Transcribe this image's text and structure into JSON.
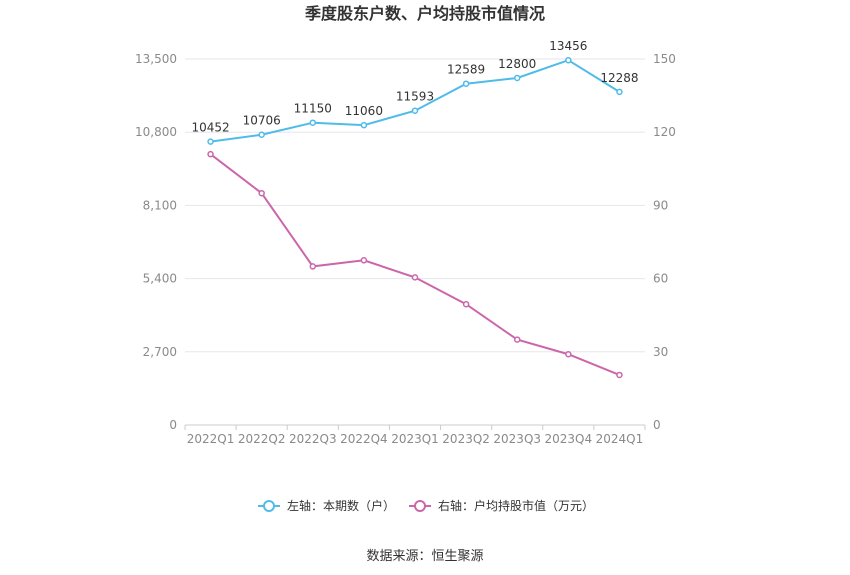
{
  "chart_data": {
    "type": "line",
    "title": "季度股东户数、户均持股市值情况",
    "categories": [
      "2022Q1",
      "2022Q2",
      "2022Q3",
      "2022Q4",
      "2023Q1",
      "2023Q2",
      "2023Q3",
      "2023Q4",
      "2024Q1"
    ],
    "series": [
      {
        "name": "左轴：本期数（户）",
        "axis": "left",
        "color": "#4fbbe9",
        "values": [
          10452,
          10706,
          11150,
          11060,
          11593,
          12589,
          12800,
          13456,
          12288
        ],
        "data_labels": [
          "10452",
          "10706",
          "11150",
          "11060",
          "11593",
          "12589",
          "12800",
          "13456",
          "12288"
        ]
      },
      {
        "name": "右轴：户均持股市值（万元）",
        "axis": "right",
        "color": "#cc66aa",
        "values": [
          111,
          95,
          65,
          67.5,
          60.5,
          49.5,
          35,
          29,
          20.5
        ]
      }
    ],
    "left_axis": {
      "min": 0,
      "max": 13500,
      "ticks": [
        0,
        2700,
        5400,
        8100,
        10800,
        13500
      ],
      "tick_labels": [
        "0",
        "2,700",
        "5,400",
        "8,100",
        "10,800",
        "13,500"
      ]
    },
    "right_axis": {
      "min": 0,
      "max": 150,
      "ticks": [
        0,
        30,
        60,
        90,
        120,
        150
      ],
      "tick_labels": [
        "0",
        "30",
        "60",
        "90",
        "120",
        "150"
      ]
    },
    "grid": true,
    "legend_position": "bottom"
  },
  "source_text": "数据来源：恒生聚源"
}
